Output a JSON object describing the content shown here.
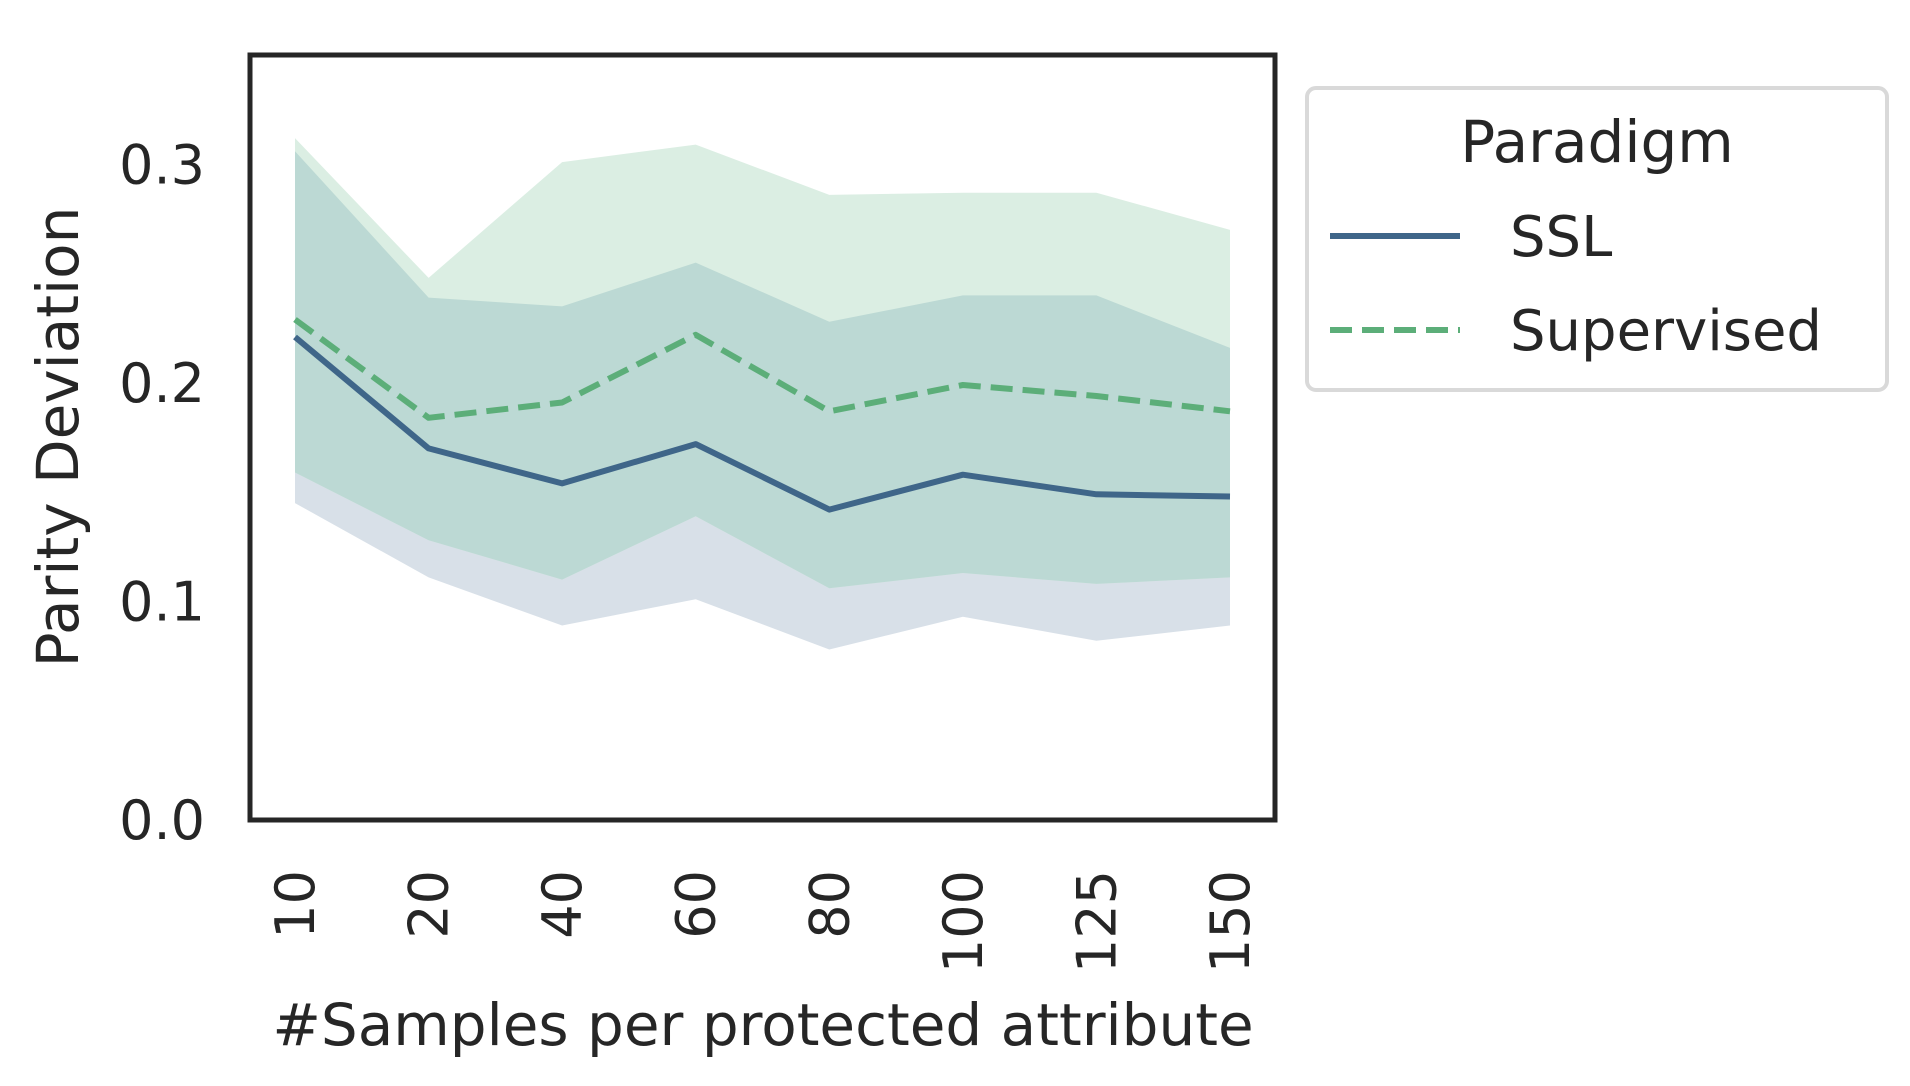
{
  "chart_data": {
    "type": "line",
    "title": "",
    "xlabel": "#Samples per protected attribute",
    "ylabel": "Parity Deviation",
    "categories": [
      "10",
      "20",
      "40",
      "60",
      "80",
      "100",
      "125",
      "150"
    ],
    "yticks": [
      "0.0",
      "0.1",
      "0.2",
      "0.3"
    ],
    "ylim": [
      0,
      0.35
    ],
    "grid": false,
    "legend": {
      "title": "Paradigm",
      "placement": "outside-right-top"
    },
    "series": [
      {
        "name": "SSL",
        "style": "solid",
        "color": "#3f6689",
        "band_color": "#d8e0e8",
        "values": [
          0.221,
          0.17,
          0.154,
          0.172,
          0.142,
          0.158,
          0.149,
          0.148
        ],
        "ci_low": [
          0.145,
          0.111,
          0.089,
          0.101,
          0.078,
          0.093,
          0.082,
          0.089
        ],
        "ci_high": [
          0.306,
          0.239,
          0.235,
          0.255,
          0.228,
          0.24,
          0.24,
          0.216
        ]
      },
      {
        "name": "Supervised",
        "style": "dashed",
        "color": "#5cae79",
        "band_color": "#dbeee3",
        "values": [
          0.229,
          0.184,
          0.191,
          0.222,
          0.187,
          0.199,
          0.194,
          0.187
        ],
        "ci_low": [
          0.159,
          0.128,
          0.11,
          0.139,
          0.106,
          0.113,
          0.108,
          0.111
        ],
        "ci_high": [
          0.312,
          0.248,
          0.301,
          0.309,
          0.286,
          0.287,
          0.287,
          0.27
        ]
      }
    ],
    "overlap_color": "#bcd9d4"
  }
}
